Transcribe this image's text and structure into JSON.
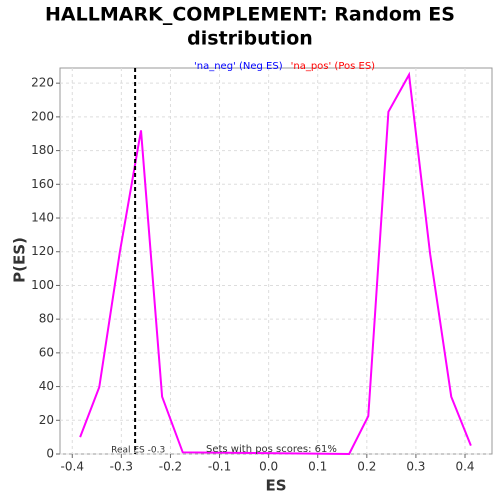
{
  "chart_data": {
    "type": "line",
    "title": [
      "HALLMARK_COMPLEMENT: Random ES",
      "distribution"
    ],
    "xlabel": "ES",
    "ylabel": "P(ES)",
    "legend": [
      {
        "name": "'na_neg' (Neg ES)",
        "color": "#0000ff"
      },
      {
        "name": "'na_pos' (Pos ES)",
        "color": "#ff0000"
      }
    ],
    "series": [
      {
        "color": "#ff00ff",
        "x": [
          -0.384,
          -0.345,
          -0.303,
          -0.26,
          -0.217,
          -0.175,
          0.164,
          0.203,
          0.244,
          0.286,
          0.329,
          0.372,
          0.412
        ],
        "values": [
          10,
          39.7,
          120,
          192,
          34,
          1,
          0,
          22.5,
          203,
          225,
          118.6,
          34,
          5
        ]
      }
    ],
    "real_es": {
      "value": -0.272,
      "label": "Real ES -0.3"
    },
    "pos_text": "Sets with pos scores: 61%",
    "xlim": [
      -0.425,
      0.455
    ],
    "ylim": [
      0,
      229
    ],
    "xticks": [
      -0.4,
      -0.3,
      -0.2,
      -0.1,
      {
        "value": 0,
        "label": "0.0"
      },
      0.1,
      0.2,
      0.3,
      0.4
    ],
    "yticks": [
      0,
      20,
      40,
      60,
      80,
      100,
      120,
      140,
      160,
      180,
      200,
      220
    ],
    "grid": true
  }
}
